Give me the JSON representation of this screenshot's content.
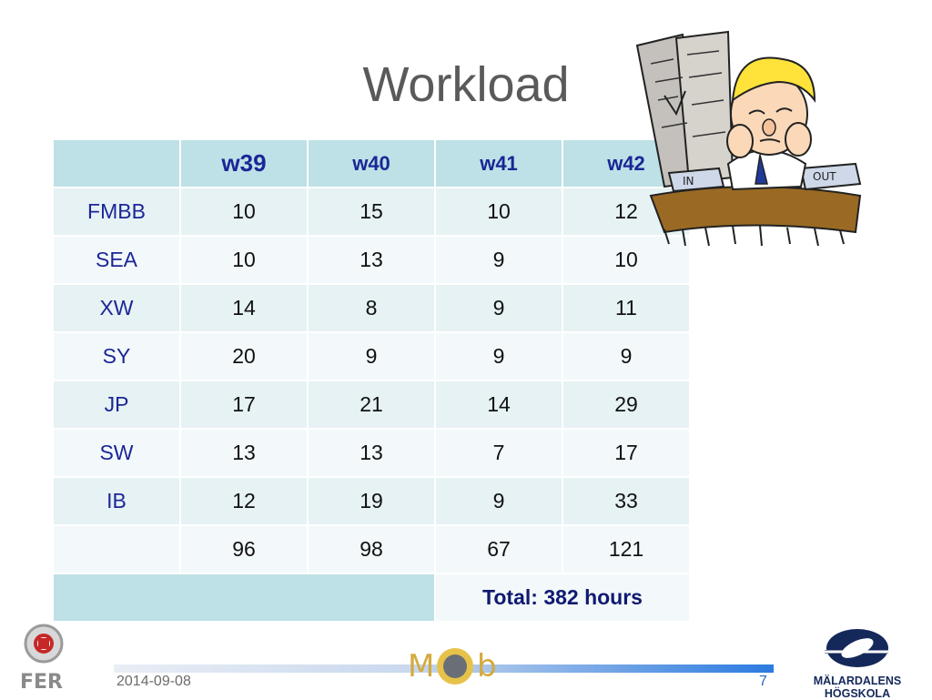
{
  "slide": {
    "title": "Workload",
    "date": "2014-09-08",
    "page_number": "7"
  },
  "table": {
    "headers": [
      "",
      "w39",
      "w40",
      "w41",
      "w42"
    ],
    "rows": [
      {
        "label": "FMBB",
        "values": [
          "10",
          "15",
          "10",
          "12"
        ]
      },
      {
        "label": "SEA",
        "values": [
          "10",
          "13",
          "9",
          "10"
        ]
      },
      {
        "label": "XW",
        "values": [
          "14",
          "8",
          "9",
          "11"
        ]
      },
      {
        "label": "SY",
        "values": [
          "20",
          "9",
          "9",
          "9"
        ]
      },
      {
        "label": "JP",
        "values": [
          "17",
          "21",
          "14",
          "29"
        ]
      },
      {
        "label": "SW",
        "values": [
          "13",
          "13",
          "7",
          "17"
        ]
      },
      {
        "label": "IB",
        "values": [
          "12",
          "19",
          "9",
          "33"
        ]
      },
      {
        "label": "",
        "values": [
          "96",
          "98",
          "67",
          "121"
        ]
      }
    ],
    "total": "Total: 382 hours"
  },
  "clipart": {
    "in_label": "IN",
    "out_label": "OUT"
  },
  "logos": {
    "left": "FER",
    "center_m": "M",
    "center_b": "b",
    "right": "MÄLARDALENS HÖGSKOLA"
  },
  "colors": {
    "header_bg": "#bde1e6",
    "label_blue": "#1b2696",
    "title_gray": "#5a5a5a"
  }
}
